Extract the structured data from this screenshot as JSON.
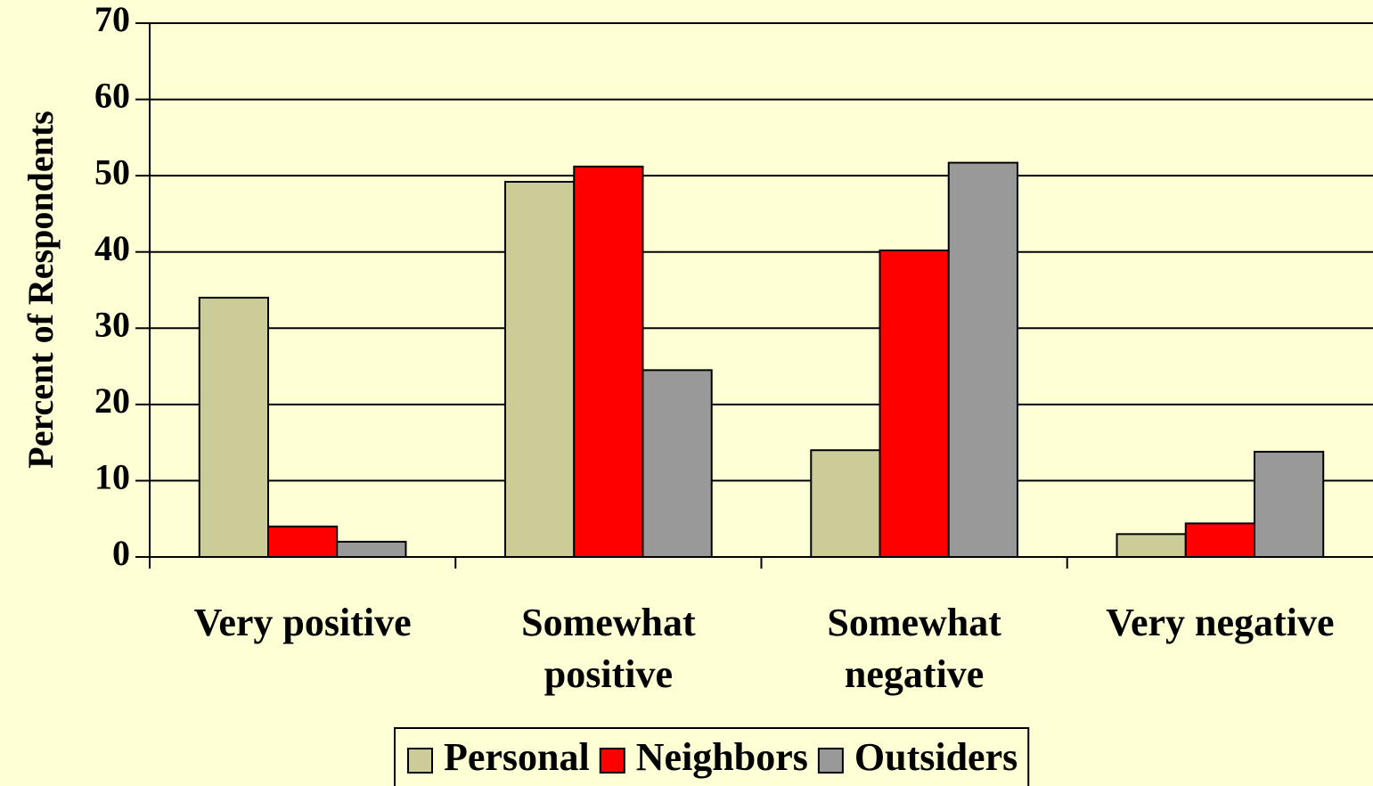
{
  "chart_data": {
    "type": "bar",
    "y_label": "Percent of Respondents",
    "categories": [
      "Very positive",
      "Somewhat positive",
      "Somewhat negative",
      "Very negative"
    ],
    "series": [
      {
        "name": "Personal",
        "color": "#cccc99",
        "values": [
          34,
          49.2,
          14,
          3
        ]
      },
      {
        "name": "Neighbors",
        "color": "#ff0000",
        "values": [
          4,
          51.2,
          40.2,
          4.4
        ]
      },
      {
        "name": "Outsiders",
        "color": "#999999",
        "values": [
          2,
          24.5,
          51.7,
          13.8
        ]
      }
    ],
    "ylim": [
      0,
      70
    ],
    "yticks": [
      0,
      10,
      20,
      30,
      40,
      50,
      60,
      70
    ],
    "grid": true,
    "legend": "bottom"
  }
}
